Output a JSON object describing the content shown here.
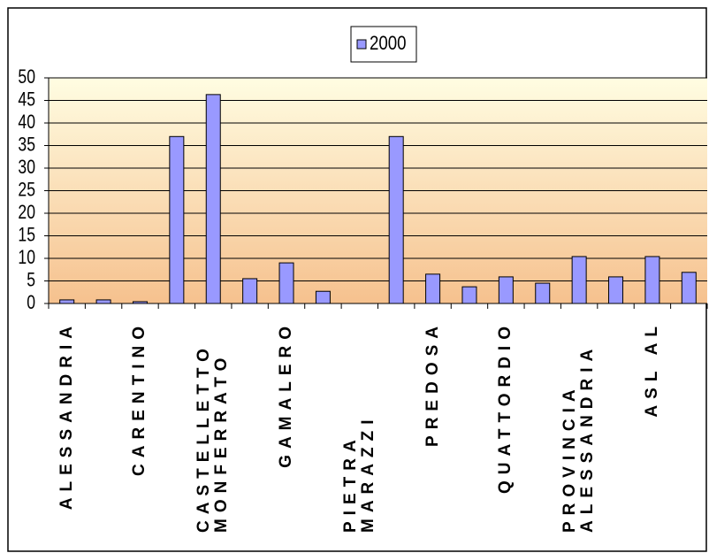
{
  "chart_data": {
    "type": "bar",
    "categories": [
      "ALESSANDRIA",
      null,
      "CARENTINO",
      null,
      "CASTELLETTO MONFERRATO",
      null,
      "GAMALERO",
      null,
      "PIETRA MARAZZI",
      null,
      "PREDOSA",
      null,
      "QUATTORDIO",
      null,
      "PROVINCIA ALESSANDRIA",
      null,
      "ASL AL",
      null
    ],
    "series": [
      {
        "name": "2000",
        "color": "#9999ff",
        "values": [
          0.8,
          0.8,
          0.4,
          37,
          46.3,
          5.5,
          9,
          2.7,
          0,
          37,
          6.5,
          3.7,
          5.9,
          4.5,
          10.4,
          5.9,
          10.4,
          6.9
        ]
      }
    ],
    "ylim": [
      0,
      50
    ],
    "yticks": [
      0,
      5,
      10,
      15,
      20,
      25,
      30,
      35,
      40,
      45,
      50
    ],
    "grid": true,
    "legend": "top"
  }
}
